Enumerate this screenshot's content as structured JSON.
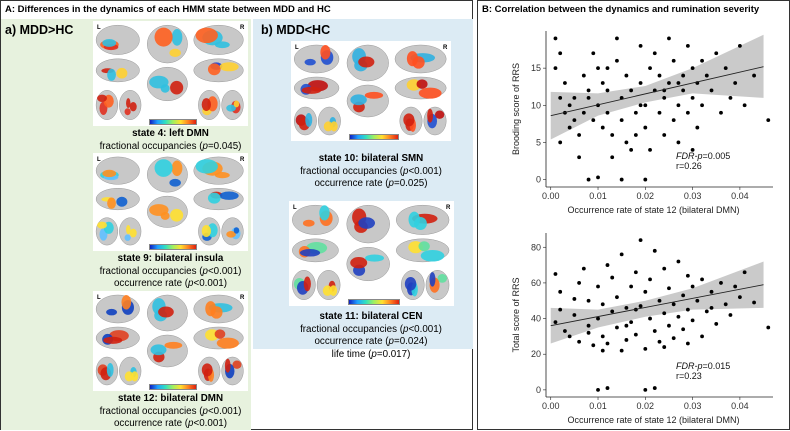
{
  "panel_a": {
    "title": "A: Differences in the dynamics of each HMM state between MDD and HC",
    "sub_a": "a) MDD>HC",
    "sub_b": "b) MDD<HC",
    "left_label": "L",
    "right_label": "R",
    "states": [
      {
        "title": "state 4: left DMN",
        "lines": [
          {
            "pre": "fractional occupancies (",
            "p": "p",
            "post": "=0.045)"
          }
        ]
      },
      {
        "title": "state 9: bilateral insula",
        "lines": [
          {
            "pre": "fractional occupancies (",
            "p": "p",
            "post": "<0.001)"
          },
          {
            "pre": "occurrence rate (",
            "p": "p",
            "post": "<0.001)"
          }
        ]
      },
      {
        "title": "state 12: bilateral DMN",
        "lines": [
          {
            "pre": "fractional occupancies (",
            "p": "p",
            "post": "<0.001)"
          },
          {
            "pre": "occurrence rate (",
            "p": "p",
            "post": "<0.001)"
          }
        ]
      },
      {
        "title": "state 10: bilateral SMN",
        "lines": [
          {
            "pre": "fractional occupancies (",
            "p": "p",
            "post": "<0.001)"
          },
          {
            "pre": "occurrence rate (",
            "p": "p",
            "post": "=0.025)"
          }
        ]
      },
      {
        "title": "state 11: bilateral CEN",
        "lines": [
          {
            "pre": "fractional occupancies (",
            "p": "p",
            "post": "<0.001)"
          },
          {
            "pre": "occurrence rate (",
            "p": "p",
            "post": "=0.024)"
          },
          {
            "pre": "life time (",
            "p": "p",
            "post": "=0.017)"
          }
        ]
      }
    ]
  },
  "panel_b": {
    "title": "B: Correlation between the dynamics and rumination severity"
  },
  "chart_data": [
    {
      "type": "scatter",
      "title": "",
      "xlabel": "Occurrence rate of state 12 (bilateral DMN)",
      "ylabel": "Brooding score of RRS",
      "xticks": [
        "0.00",
        "0.01",
        "0.02",
        "0.03",
        "0.04"
      ],
      "yticks": [
        "0",
        "5",
        "10",
        "15"
      ],
      "xlim": [
        -0.001,
        0.047
      ],
      "ylim": [
        -1,
        20
      ],
      "annotation_stat": "FDR-p",
      "annotation_p": "=0.005",
      "annotation_r": "r=0.26",
      "fit_line": {
        "x": [
          0.0,
          0.045
        ],
        "y": [
          8.6,
          15.2
        ]
      },
      "ci_upper": [
        [
          0.0,
          11.8
        ],
        [
          0.01,
          11.6
        ],
        [
          0.02,
          12.6
        ],
        [
          0.03,
          15.0
        ],
        [
          0.045,
          19.5
        ]
      ],
      "ci_lower": [
        [
          0.0,
          5.4
        ],
        [
          0.01,
          8.6
        ],
        [
          0.02,
          10.4
        ],
        [
          0.03,
          11.6
        ],
        [
          0.045,
          11.0
        ]
      ],
      "points": [
        [
          0.001,
          19
        ],
        [
          0.002,
          17
        ],
        [
          0.001,
          15
        ],
        [
          0.003,
          13
        ],
        [
          0.002,
          11
        ],
        [
          0.004,
          10
        ],
        [
          0.003,
          9
        ],
        [
          0.005,
          8
        ],
        [
          0.004,
          7
        ],
        [
          0.002,
          5
        ],
        [
          0.006,
          6
        ],
        [
          0.007,
          14
        ],
        [
          0.008,
          12
        ],
        [
          0.007,
          9
        ],
        [
          0.009,
          8
        ],
        [
          0.008,
          11
        ],
        [
          0.009,
          17
        ],
        [
          0.01,
          15
        ],
        [
          0.011,
          13
        ],
        [
          0.01,
          10
        ],
        [
          0.012,
          9
        ],
        [
          0.011,
          7
        ],
        [
          0.013,
          6
        ],
        [
          0.012,
          12
        ],
        [
          0.014,
          19
        ],
        [
          0.014,
          16
        ],
        [
          0.015,
          11
        ],
        [
          0.015,
          8
        ],
        [
          0.016,
          5
        ],
        [
          0.016,
          14
        ],
        [
          0.017,
          12
        ],
        [
          0.018,
          9
        ],
        [
          0.018,
          6
        ],
        [
          0.019,
          18
        ],
        [
          0.019,
          13
        ],
        [
          0.02,
          10
        ],
        [
          0.02,
          7
        ],
        [
          0.021,
          15
        ],
        [
          0.021,
          4
        ],
        [
          0.022,
          12
        ],
        [
          0.022,
          17
        ],
        [
          0.023,
          9
        ],
        [
          0.023,
          14
        ],
        [
          0.024,
          6
        ],
        [
          0.024,
          11
        ],
        [
          0.025,
          19
        ],
        [
          0.025,
          13
        ],
        [
          0.026,
          8
        ],
        [
          0.026,
          16
        ],
        [
          0.027,
          10
        ],
        [
          0.027,
          5
        ],
        [
          0.028,
          14
        ],
        [
          0.028,
          12
        ],
        [
          0.029,
          9
        ],
        [
          0.029,
          18
        ],
        [
          0.03,
          15
        ],
        [
          0.03,
          11
        ],
        [
          0.031,
          7
        ],
        [
          0.031,
          13
        ],
        [
          0.032,
          16
        ],
        [
          0.032,
          10
        ],
        [
          0.033,
          14
        ],
        [
          0.034,
          12
        ],
        [
          0.035,
          17
        ],
        [
          0.036,
          9
        ],
        [
          0.037,
          15
        ],
        [
          0.038,
          11
        ],
        [
          0.039,
          13
        ],
        [
          0.04,
          18
        ],
        [
          0.041,
          10
        ],
        [
          0.043,
          14
        ],
        [
          0.046,
          8
        ],
        [
          0.008,
          0
        ],
        [
          0.01,
          0.3
        ],
        [
          0.015,
          0
        ],
        [
          0.02,
          0
        ],
        [
          0.017,
          4
        ],
        [
          0.013,
          3
        ],
        [
          0.006,
          3
        ],
        [
          0.005,
          11
        ],
        [
          0.012,
          15
        ],
        [
          0.019,
          10
        ],
        [
          0.024,
          12
        ],
        [
          0.027,
          13
        ],
        [
          0.03,
          4
        ]
      ]
    },
    {
      "type": "scatter",
      "title": "",
      "xlabel": "Occurrence rate of state 12 (bilateral DMN)",
      "ylabel": "Total score of RRS",
      "xticks": [
        "0.00",
        "0.01",
        "0.02",
        "0.03",
        "0.04"
      ],
      "yticks": [
        "0",
        "20",
        "40",
        "60",
        "80"
      ],
      "xlim": [
        -0.001,
        0.047
      ],
      "ylim": [
        -4,
        88
      ],
      "annotation_stat": "FDR-p",
      "annotation_p": "=0.015",
      "annotation_r": "r=0.23",
      "fit_line": {
        "x": [
          0.0,
          0.045
        ],
        "y": [
          36,
          59
        ]
      },
      "ci_upper": [
        [
          0.0,
          46
        ],
        [
          0.01,
          45
        ],
        [
          0.02,
          50
        ],
        [
          0.03,
          57
        ],
        [
          0.045,
          72
        ]
      ],
      "ci_lower": [
        [
          0.0,
          26
        ],
        [
          0.01,
          35
        ],
        [
          0.02,
          41
        ],
        [
          0.03,
          45
        ],
        [
          0.045,
          46
        ]
      ],
      "points": [
        [
          0.001,
          65
        ],
        [
          0.002,
          55
        ],
        [
          0.001,
          38
        ],
        [
          0.003,
          33
        ],
        [
          0.002,
          45
        ],
        [
          0.004,
          30
        ],
        [
          0.005,
          42
        ],
        [
          0.006,
          27
        ],
        [
          0.006,
          60
        ],
        [
          0.007,
          68
        ],
        [
          0.008,
          50
        ],
        [
          0.008,
          36
        ],
        [
          0.009,
          25
        ],
        [
          0.01,
          58
        ],
        [
          0.01,
          40
        ],
        [
          0.011,
          30
        ],
        [
          0.011,
          48
        ],
        [
          0.012,
          70
        ],
        [
          0.012,
          26
        ],
        [
          0.013,
          44
        ],
        [
          0.013,
          63
        ],
        [
          0.014,
          35
        ],
        [
          0.014,
          52
        ],
        [
          0.015,
          22
        ],
        [
          0.015,
          76
        ],
        [
          0.016,
          46
        ],
        [
          0.016,
          28
        ],
        [
          0.017,
          58
        ],
        [
          0.017,
          38
        ],
        [
          0.018,
          66
        ],
        [
          0.018,
          31
        ],
        [
          0.019,
          84
        ],
        [
          0.019,
          47
        ],
        [
          0.02,
          23
        ],
        [
          0.02,
          55
        ],
        [
          0.021,
          40
        ],
        [
          0.021,
          62
        ],
        [
          0.022,
          78
        ],
        [
          0.022,
          33
        ],
        [
          0.023,
          50
        ],
        [
          0.023,
          27
        ],
        [
          0.024,
          68
        ],
        [
          0.024,
          43
        ],
        [
          0.025,
          57
        ],
        [
          0.025,
          36
        ],
        [
          0.026,
          48
        ],
        [
          0.026,
          29
        ],
        [
          0.027,
          72
        ],
        [
          0.027,
          41
        ],
        [
          0.028,
          53
        ],
        [
          0.028,
          34
        ],
        [
          0.029,
          64
        ],
        [
          0.029,
          45
        ],
        [
          0.03,
          58
        ],
        [
          0.03,
          39
        ],
        [
          0.031,
          50
        ],
        [
          0.032,
          30
        ],
        [
          0.032,
          62
        ],
        [
          0.033,
          44
        ],
        [
          0.034,
          55
        ],
        [
          0.035,
          37
        ],
        [
          0.036,
          60
        ],
        [
          0.037,
          48
        ],
        [
          0.038,
          42
        ],
        [
          0.039,
          58
        ],
        [
          0.04,
          52
        ],
        [
          0.041,
          66
        ],
        [
          0.043,
          49
        ],
        [
          0.046,
          35
        ],
        [
          0.01,
          0
        ],
        [
          0.012,
          1
        ],
        [
          0.02,
          0
        ],
        [
          0.022,
          1
        ],
        [
          0.008,
          32
        ],
        [
          0.016,
          36
        ],
        [
          0.024,
          24
        ],
        [
          0.018,
          45
        ],
        [
          0.011,
          22
        ],
        [
          0.005,
          51
        ],
        [
          0.029,
          26
        ],
        [
          0.034,
          46
        ]
      ]
    }
  ]
}
